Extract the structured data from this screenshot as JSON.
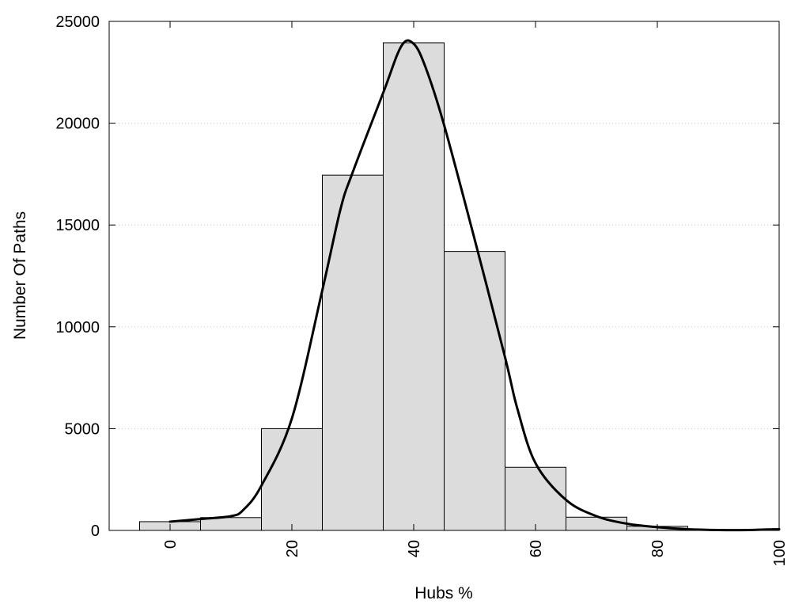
{
  "chart_data": {
    "type": "bar",
    "xlabel": "Hubs %",
    "ylabel": "Number Of Paths",
    "xlim": [
      -10,
      100
    ],
    "ylim": [
      0,
      25000
    ],
    "grid": true,
    "x_ticks": [
      0,
      20,
      40,
      60,
      80,
      100
    ],
    "y_ticks": [
      0,
      5000,
      10000,
      15000,
      20000,
      25000
    ],
    "bin_width": 10,
    "bins": [
      {
        "center": 0,
        "value": 430
      },
      {
        "center": 10,
        "value": 630
      },
      {
        "center": 20,
        "value": 5000
      },
      {
        "center": 30,
        "value": 17450
      },
      {
        "center": 40,
        "value": 23950
      },
      {
        "center": 50,
        "value": 13700
      },
      {
        "center": 60,
        "value": 3100
      },
      {
        "center": 70,
        "value": 650
      },
      {
        "center": 80,
        "value": 200
      }
    ],
    "density_curve": {
      "x": [
        0,
        5,
        10,
        12,
        15,
        20,
        25,
        28,
        30,
        35,
        38,
        40,
        42,
        45,
        50,
        55,
        57,
        60,
        65,
        70,
        75,
        80,
        85,
        90,
        95,
        100
      ],
      "y": [
        430,
        560,
        700,
        1000,
        2200,
        5500,
        11800,
        15800,
        17600,
        21500,
        23800,
        23900,
        22700,
        19900,
        14300,
        8500,
        6000,
        3300,
        1500,
        700,
        330,
        160,
        60,
        20,
        20,
        60
      ]
    },
    "colors": {
      "bar_fill": "#dcdcdc",
      "bar_stroke": "#000000",
      "curve": "#000000"
    }
  }
}
